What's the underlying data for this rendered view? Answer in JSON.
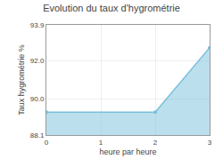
{
  "chart_data": {
    "type": "area",
    "title": "Evolution du taux d'hygrométrie",
    "xlabel": "heure par heure",
    "ylabel": "Taux hygrométrie %",
    "x": [
      0,
      2,
      3
    ],
    "values": [
      89.3,
      89.3,
      92.7
    ],
    "color": "#78c0dc",
    "marker": "circle",
    "xlim": [
      0,
      3
    ],
    "xticks": [
      0,
      1,
      2,
      3
    ],
    "ylim": [
      88.1,
      93.9
    ],
    "yticks": [
      88.1,
      {
        "value": 90,
        "label": "90.0"
      },
      {
        "value": 92,
        "label": "92.0"
      },
      93.9
    ],
    "grid": true
  }
}
